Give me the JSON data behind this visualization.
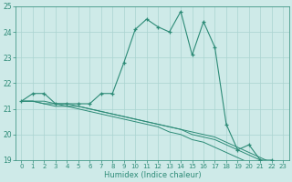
{
  "xlabel": "Humidex (Indice chaleur)",
  "ylabel": "",
  "x_values": [
    0,
    1,
    2,
    3,
    4,
    5,
    6,
    7,
    8,
    9,
    10,
    11,
    12,
    13,
    14,
    15,
    16,
    17,
    18,
    19,
    20,
    21,
    22,
    23
  ],
  "line1": [
    21.3,
    21.6,
    21.6,
    21.2,
    21.2,
    21.2,
    21.2,
    21.6,
    21.6,
    22.8,
    24.1,
    24.5,
    24.2,
    24.0,
    24.8,
    23.1,
    24.4,
    23.4,
    20.4,
    19.4,
    19.6,
    19.0,
    19.0,
    18.7
  ],
  "line2": [
    21.3,
    21.3,
    21.3,
    21.2,
    21.2,
    21.1,
    21.0,
    20.9,
    20.8,
    20.7,
    20.6,
    20.5,
    20.4,
    20.3,
    20.2,
    20.1,
    20.0,
    19.9,
    19.7,
    19.5,
    19.3,
    19.1,
    18.9,
    18.7
  ],
  "line3": [
    21.3,
    21.3,
    21.2,
    21.2,
    21.1,
    21.1,
    21.0,
    20.9,
    20.8,
    20.7,
    20.6,
    20.5,
    20.4,
    20.3,
    20.2,
    20.0,
    19.9,
    19.8,
    19.6,
    19.4,
    19.2,
    19.0,
    18.9,
    18.7
  ],
  "line4": [
    21.3,
    21.3,
    21.2,
    21.1,
    21.1,
    21.0,
    20.9,
    20.8,
    20.7,
    20.6,
    20.5,
    20.4,
    20.3,
    20.1,
    20.0,
    19.8,
    19.7,
    19.5,
    19.3,
    19.1,
    18.9,
    18.8,
    18.7,
    18.6
  ],
  "line_color": "#2d8b77",
  "bg_color": "#ceeae8",
  "grid_color": "#aad4d0",
  "ylim": [
    19,
    25
  ],
  "xlim": [
    -0.5,
    23.5
  ],
  "yticks": [
    19,
    20,
    21,
    22,
    23,
    24,
    25
  ]
}
